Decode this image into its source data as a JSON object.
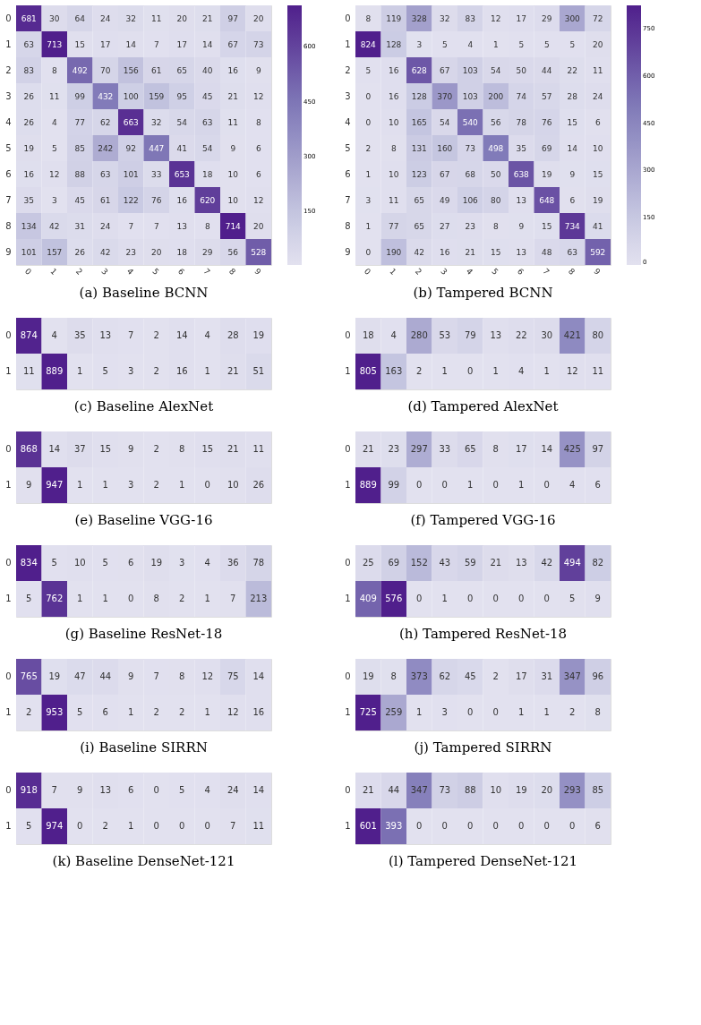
{
  "chart_data": [
    {
      "type": "heatmap",
      "title": "(a) Baseline BCNN",
      "categories": [
        "0",
        "1",
        "2",
        "3",
        "4",
        "5",
        "6",
        "7",
        "8",
        "9"
      ],
      "y_categories": [
        "0",
        "1",
        "2",
        "3",
        "4",
        "5",
        "6",
        "7",
        "8",
        "9"
      ],
      "data_labels": true,
      "clim": [
        3,
        714
      ],
      "cticks": [
        150,
        300,
        450,
        600
      ],
      "cells": [
        [
          681,
          30,
          64,
          24,
          32,
          11,
          20,
          21,
          97,
          20
        ],
        [
          63,
          713,
          15,
          17,
          14,
          7,
          17,
          14,
          67,
          73
        ],
        [
          83,
          8,
          492,
          70,
          156,
          61,
          65,
          40,
          16,
          9
        ],
        [
          26,
          11,
          99,
          432,
          100,
          159,
          95,
          45,
          21,
          12
        ],
        [
          26,
          4,
          77,
          62,
          663,
          32,
          54,
          63,
          11,
          8
        ],
        [
          19,
          5,
          85,
          242,
          92,
          447,
          41,
          54,
          9,
          6
        ],
        [
          16,
          12,
          88,
          63,
          101,
          33,
          653,
          18,
          10,
          6
        ],
        [
          35,
          3,
          45,
          61,
          122,
          76,
          16,
          620,
          10,
          12
        ],
        [
          134,
          42,
          31,
          24,
          7,
          7,
          13,
          8,
          714,
          20
        ],
        [
          101,
          157,
          26,
          42,
          23,
          20,
          18,
          29,
          56,
          528
        ]
      ]
    },
    {
      "type": "heatmap",
      "title": "(b) Tampered BCNN",
      "categories": [
        "0",
        "1",
        "2",
        "3",
        "4",
        "5",
        "6",
        "7",
        "8",
        "9"
      ],
      "y_categories": [
        "0",
        "1",
        "2",
        "3",
        "4",
        "5",
        "6",
        "7",
        "8",
        "9"
      ],
      "data_labels": true,
      "clim": [
        0,
        824
      ],
      "cticks": [
        0,
        150,
        300,
        450,
        600,
        750
      ],
      "cells": [
        [
          8,
          119,
          328,
          32,
          83,
          12,
          17,
          29,
          300,
          72
        ],
        [
          824,
          128,
          3,
          5,
          4,
          1,
          5,
          5,
          5,
          20
        ],
        [
          5,
          16,
          628,
          67,
          103,
          54,
          50,
          44,
          22,
          11
        ],
        [
          0,
          16,
          128,
          370,
          103,
          200,
          74,
          57,
          28,
          24
        ],
        [
          0,
          10,
          165,
          54,
          540,
          56,
          78,
          76,
          15,
          6
        ],
        [
          2,
          8,
          131,
          160,
          73,
          498,
          35,
          69,
          14,
          10
        ],
        [
          1,
          10,
          123,
          67,
          68,
          50,
          638,
          19,
          9,
          15
        ],
        [
          3,
          11,
          65,
          49,
          106,
          80,
          13,
          648,
          6,
          19
        ],
        [
          1,
          77,
          65,
          27,
          23,
          8,
          9,
          15,
          734,
          41
        ],
        [
          0,
          190,
          42,
          16,
          21,
          15,
          13,
          48,
          63,
          592
        ]
      ]
    },
    {
      "type": "heatmap",
      "title": "(c) Baseline AlexNet",
      "categories": [
        null,
        null,
        null,
        null,
        null,
        null,
        null,
        null,
        null,
        null
      ],
      "y_categories": [
        "0",
        "1"
      ],
      "tick_labels": "y",
      "data_labels": true,
      "cells": [
        [
          874,
          4,
          35,
          13,
          7,
          2,
          14,
          4,
          28,
          19
        ],
        [
          11,
          889,
          1,
          5,
          3,
          2,
          16,
          1,
          21,
          51
        ]
      ]
    },
    {
      "type": "heatmap",
      "title": "(d) Tampered AlexNet",
      "categories": [
        null,
        null,
        null,
        null,
        null,
        null,
        null,
        null,
        null,
        null
      ],
      "y_categories": [
        "0",
        "1"
      ],
      "tick_labels": "y",
      "data_labels": true,
      "cells": [
        [
          18,
          4,
          280,
          53,
          79,
          13,
          22,
          30,
          421,
          80
        ],
        [
          805,
          163,
          2,
          1,
          0,
          1,
          4,
          1,
          12,
          11
        ]
      ]
    },
    {
      "type": "heatmap",
      "title": "(e) Baseline VGG-16",
      "categories": [
        null,
        null,
        null,
        null,
        null,
        null,
        null,
        null,
        null,
        null
      ],
      "y_categories": [
        "0",
        "1"
      ],
      "tick_labels": "y",
      "data_labels": true,
      "cells": [
        [
          868,
          14,
          37,
          15,
          9,
          2,
          8,
          15,
          21,
          11
        ],
        [
          9,
          947,
          1,
          1,
          3,
          2,
          1,
          0,
          10,
          26
        ]
      ]
    },
    {
      "type": "heatmap",
      "title": "(f) Tampered VGG-16",
      "categories": [
        null,
        null,
        null,
        null,
        null,
        null,
        null,
        null,
        null,
        null
      ],
      "y_categories": [
        "0",
        "1"
      ],
      "tick_labels": "y",
      "data_labels": true,
      "cells": [
        [
          21,
          23,
          297,
          33,
          65,
          8,
          17,
          14,
          425,
          97
        ],
        [
          889,
          99,
          0,
          0,
          1,
          0,
          1,
          0,
          4,
          6
        ]
      ]
    },
    {
      "type": "heatmap",
      "title": "(g) Baseline ResNet-18",
      "categories": [
        null,
        null,
        null,
        null,
        null,
        null,
        null,
        null,
        null,
        null
      ],
      "y_categories": [
        "0",
        "1"
      ],
      "tick_labels": "y",
      "data_labels": true,
      "cells": [
        [
          834,
          5,
          10,
          5,
          6,
          19,
          3,
          4,
          36,
          78
        ],
        [
          5,
          762,
          1,
          1,
          0,
          8,
          2,
          1,
          7,
          213
        ]
      ]
    },
    {
      "type": "heatmap",
      "title": "(h) Tampered ResNet-18",
      "categories": [
        null,
        null,
        null,
        null,
        null,
        null,
        null,
        null,
        null,
        null
      ],
      "y_categories": [
        "0",
        "1"
      ],
      "tick_labels": "y",
      "data_labels": true,
      "cells": [
        [
          25,
          69,
          152,
          43,
          59,
          21,
          13,
          42,
          494,
          82
        ],
        [
          409,
          576,
          0,
          1,
          0,
          0,
          0,
          0,
          5,
          9
        ]
      ]
    },
    {
      "type": "heatmap",
      "title": "(i) Baseline SIRRN",
      "categories": [
        null,
        null,
        null,
        null,
        null,
        null,
        null,
        null,
        null,
        null
      ],
      "y_categories": [
        "0",
        "1"
      ],
      "tick_labels": "y",
      "data_labels": true,
      "cells": [
        [
          765,
          19,
          47,
          44,
          9,
          7,
          8,
          12,
          75,
          14
        ],
        [
          2,
          953,
          5,
          6,
          1,
          2,
          2,
          1,
          12,
          16
        ]
      ]
    },
    {
      "type": "heatmap",
      "title": "(j) Tampered SIRRN",
      "categories": [
        null,
        null,
        null,
        null,
        null,
        null,
        null,
        null,
        null,
        null
      ],
      "y_categories": [
        "0",
        "1"
      ],
      "tick_labels": "y",
      "data_labels": true,
      "cells": [
        [
          19,
          8,
          373,
          62,
          45,
          2,
          17,
          31,
          347,
          96
        ],
        [
          725,
          259,
          1,
          3,
          0,
          0,
          1,
          1,
          2,
          8
        ]
      ]
    },
    {
      "type": "heatmap",
      "title": "(k) Baseline DenseNet-121",
      "categories": [
        null,
        null,
        null,
        null,
        null,
        null,
        null,
        null,
        null,
        null
      ],
      "y_categories": [
        "0",
        "1"
      ],
      "tick_labels": "y",
      "data_labels": true,
      "cells": [
        [
          918,
          7,
          9,
          13,
          6,
          0,
          5,
          4,
          24,
          14
        ],
        [
          5,
          974,
          0,
          2,
          1,
          0,
          0,
          0,
          7,
          11
        ]
      ]
    },
    {
      "type": "heatmap",
      "title": "(l) Tampered DenseNet-121",
      "categories": [
        null,
        null,
        null,
        null,
        null,
        null,
        null,
        null,
        null,
        null
      ],
      "y_categories": [
        "0",
        "1"
      ],
      "tick_labels": "y",
      "data_labels": true,
      "cells": [
        [
          21,
          44,
          347,
          73,
          88,
          10,
          19,
          20,
          293,
          85
        ],
        [
          601,
          393,
          0,
          0,
          0,
          0,
          0,
          0,
          0,
          6
        ]
      ]
    }
  ]
}
